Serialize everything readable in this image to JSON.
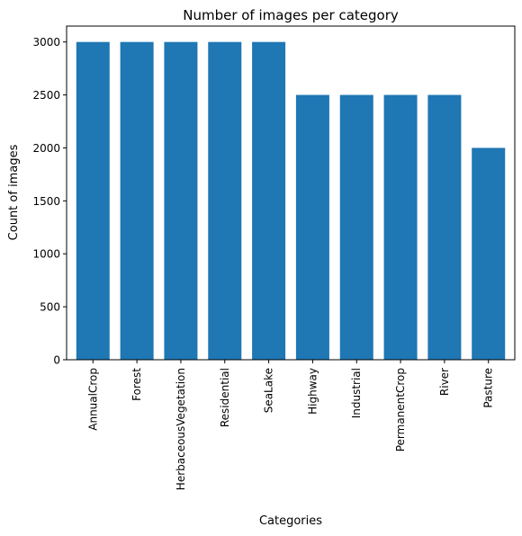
{
  "chart_data": {
    "type": "bar",
    "title": "Number of images per category",
    "xlabel": "Categories",
    "ylabel": "Count of images",
    "categories": [
      "AnnualCrop",
      "Forest",
      "HerbaceousVegetation",
      "Residential",
      "SeaLake",
      "Highway",
      "Industrial",
      "PermanentCrop",
      "River",
      "Pasture"
    ],
    "values": [
      3000,
      3000,
      3000,
      3000,
      3000,
      2500,
      2500,
      2500,
      2500,
      2000
    ],
    "yticks": [
      0,
      500,
      1000,
      1500,
      2000,
      2500,
      3000
    ],
    "ylim": [
      0,
      3150
    ],
    "grid": false,
    "bar_color": "#1f77b4"
  }
}
